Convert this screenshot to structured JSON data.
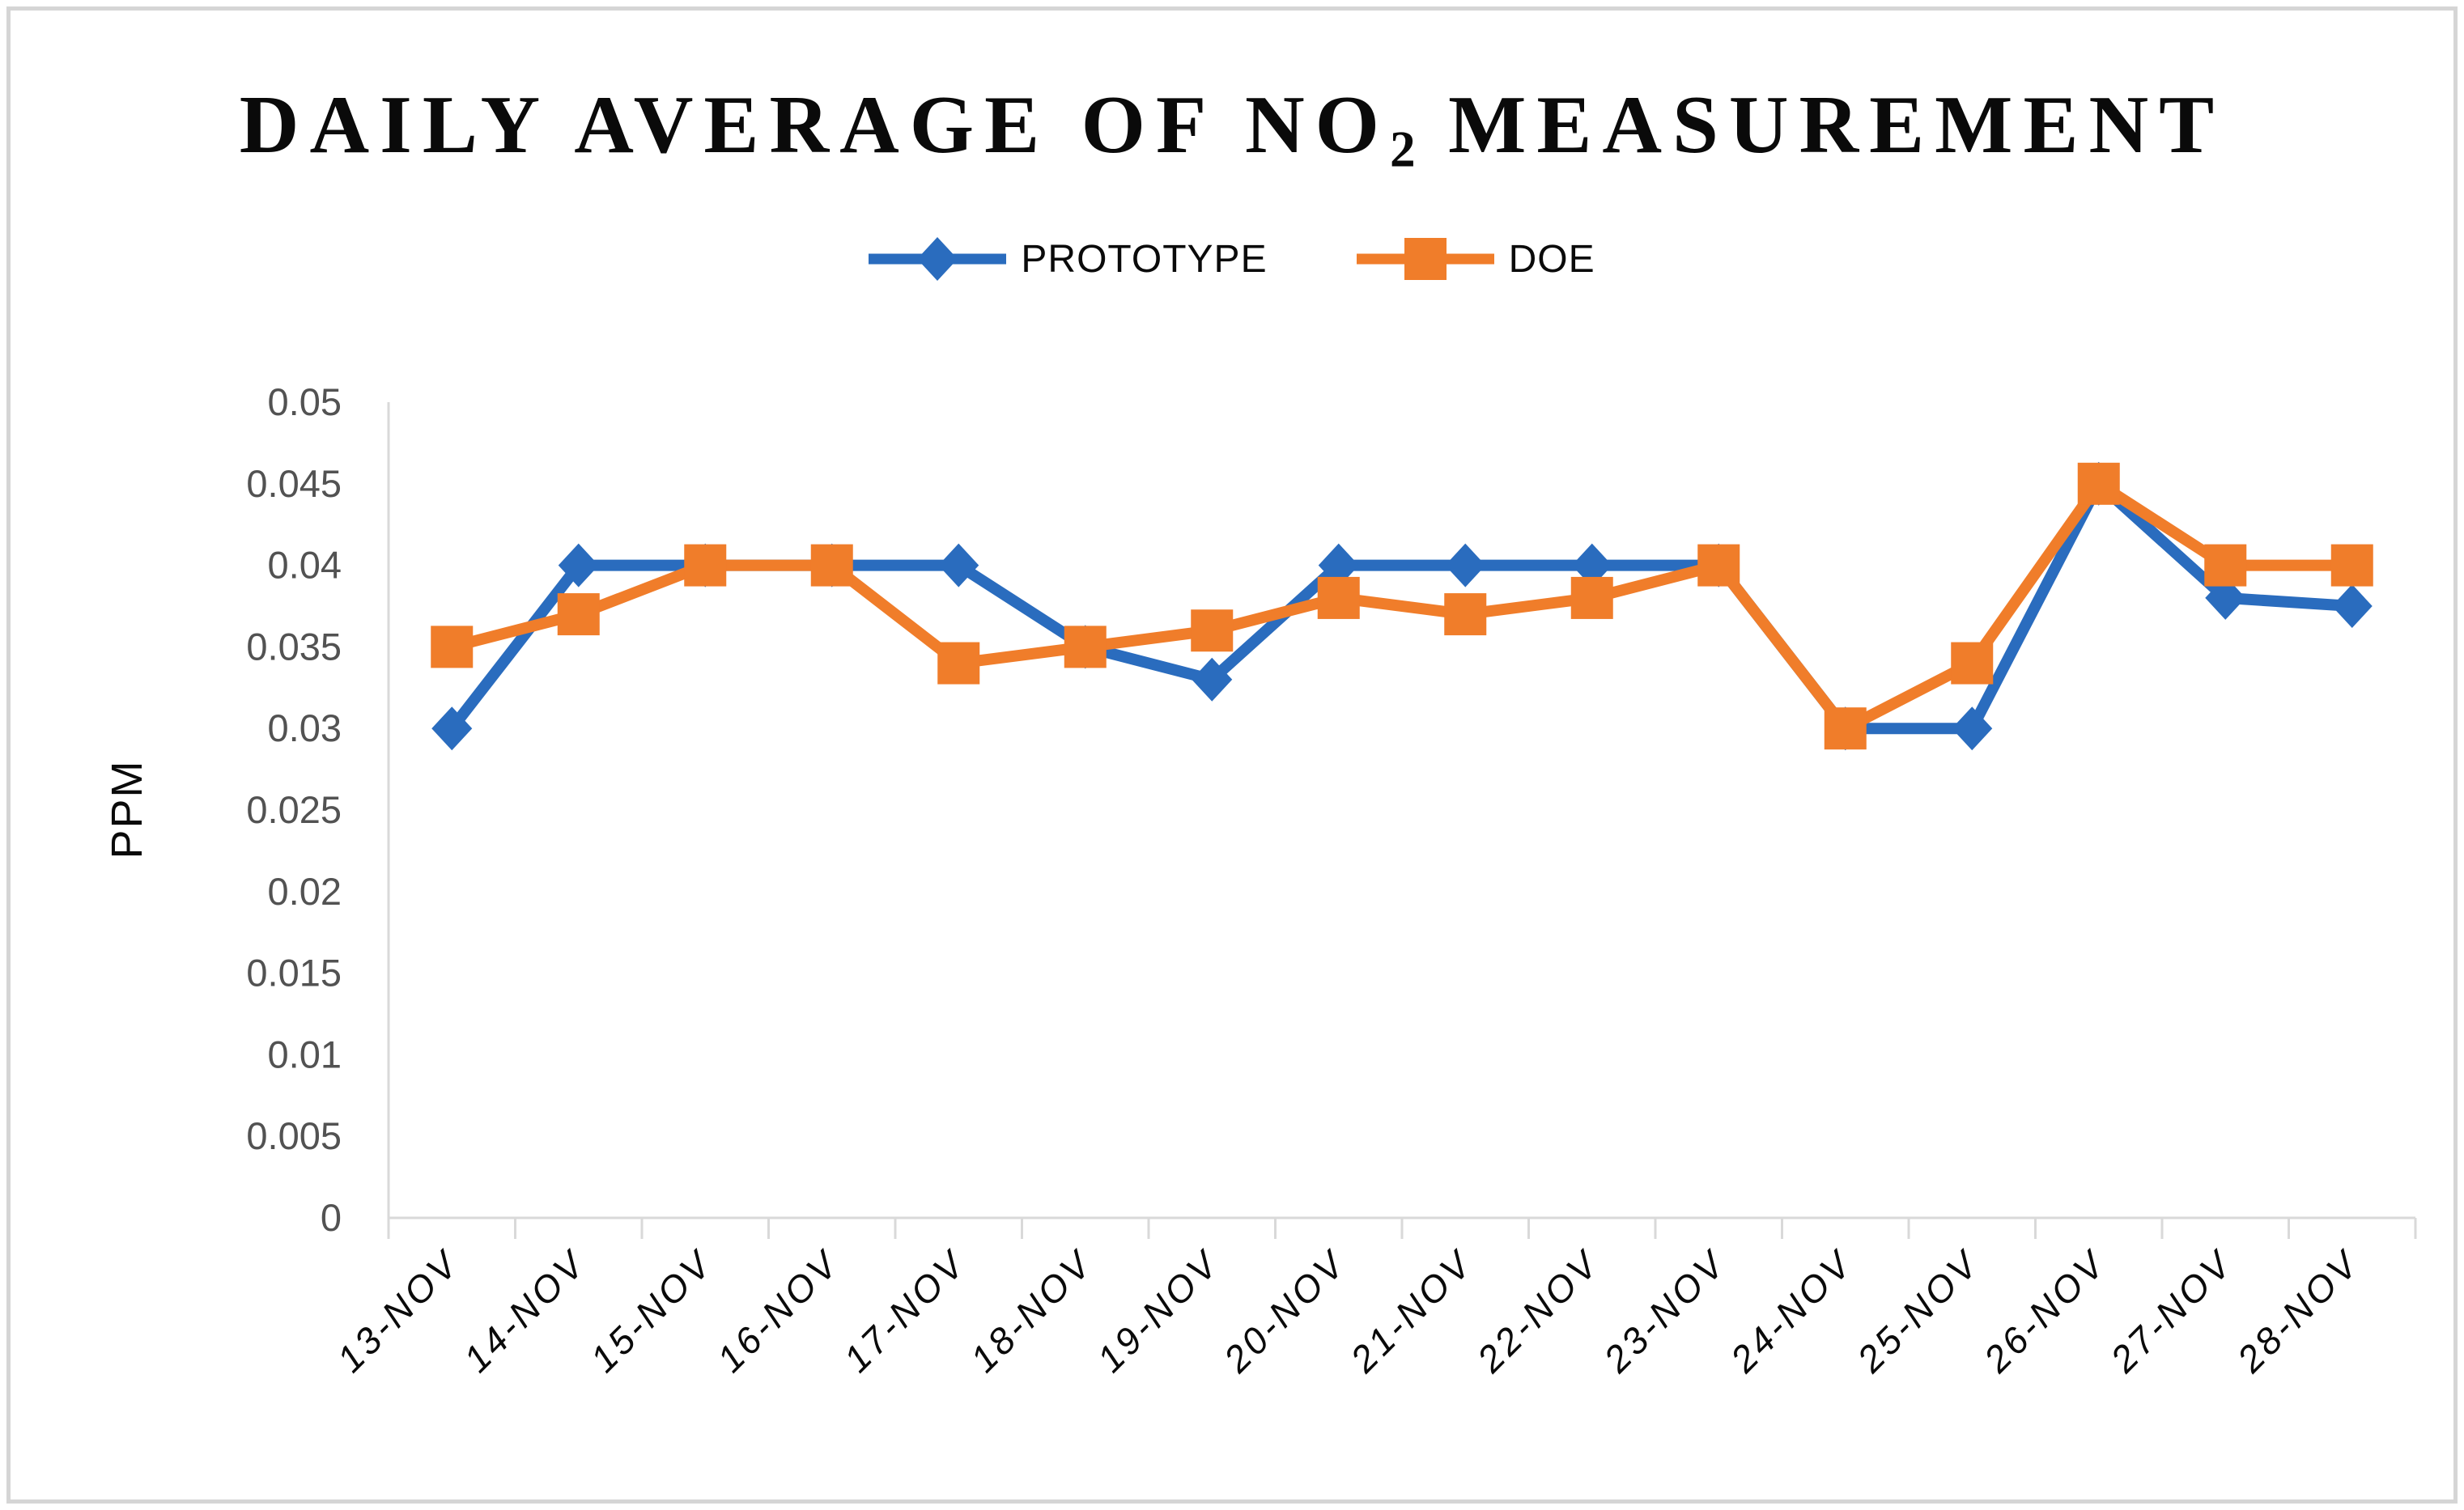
{
  "title": {
    "prefix": "DAILY AVERAGE OF NO",
    "subscript": "2",
    "suffix": " MEASUREMENT"
  },
  "axis_title_y": "PPM",
  "chart_data": {
    "type": "line",
    "title": "DAILY AVERAGE OF NO2 MEASUREMENT",
    "xlabel": "",
    "ylabel": "PPM",
    "ylim": [
      0,
      0.05
    ],
    "y_tick_step": 0.005,
    "y_ticks": [
      "0",
      "0.005",
      "0.01",
      "0.015",
      "0.02",
      "0.025",
      "0.03",
      "0.035",
      "0.04",
      "0.045",
      "0.05"
    ],
    "grid": false,
    "legend_position": "top-center",
    "categories": [
      "13-NOV",
      "14-NOV",
      "15-NOV",
      "16-NOV",
      "17-NOV",
      "18-NOV",
      "19-NOV",
      "20-NOV",
      "21-NOV",
      "22-NOV",
      "23-NOV",
      "24-NOV",
      "25-NOV",
      "26-NOV",
      "27-NOV",
      "28-NOV"
    ],
    "series": [
      {
        "name": "PROTOTYPE",
        "color": "#2a6cbe",
        "marker": "diamond",
        "values": [
          0.03,
          0.04,
          0.04,
          0.04,
          0.04,
          0.035,
          0.033,
          0.04,
          0.04,
          0.04,
          0.04,
          0.03,
          0.03,
          0.045,
          0.038,
          0.0375
        ]
      },
      {
        "name": "DOE",
        "color": "#f07d2a",
        "marker": "square",
        "values": [
          0.035,
          0.037,
          0.04,
          0.04,
          0.034,
          0.035,
          0.036,
          0.038,
          0.037,
          0.038,
          0.04,
          0.03,
          0.034,
          0.045,
          0.04,
          0.04
        ]
      }
    ],
    "colors": {
      "axis_line": "#d9d9d9",
      "y_tick_label": "#525252",
      "x_tick_label": "#0a0a0a",
      "title_text": "#0a0a0a"
    }
  }
}
